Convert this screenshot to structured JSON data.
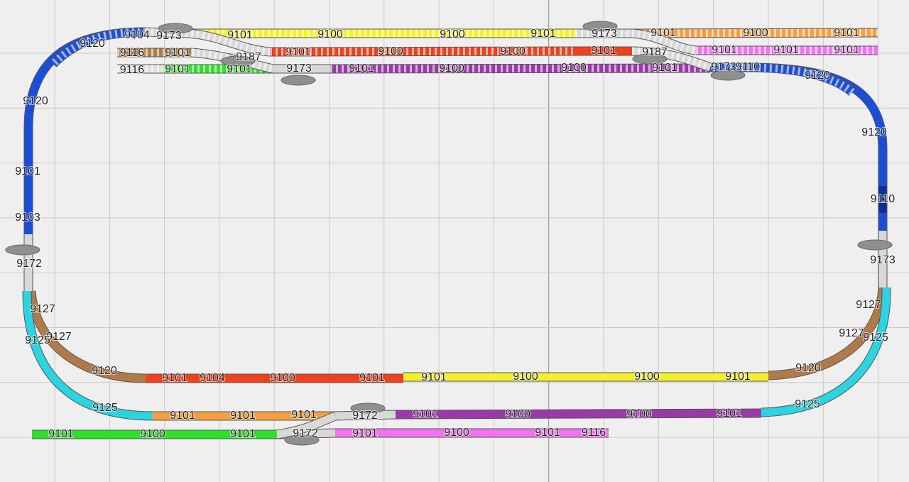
{
  "labels": [
    "9120",
    "9104",
    "9173",
    "9101",
    "9100",
    "9100",
    "9101",
    "9173",
    "9101",
    "9100",
    "9101",
    "9116",
    "9101",
    "9187",
    "9101",
    "9100",
    "9100",
    "9101",
    "9187",
    "9101",
    "9101",
    "9101",
    "9116",
    "9101",
    "9101",
    "9173",
    "9101",
    "9100",
    "9100",
    "9101",
    "9173",
    "9110",
    "9120",
    "9120",
    "9110",
    "9173",
    "9127",
    "9127",
    "9125",
    "9120",
    "9125",
    "9120",
    "9101",
    "9103",
    "9172",
    "9127",
    "9127",
    "9125",
    "9120",
    "9125",
    "9101",
    "9104",
    "9100",
    "9101",
    "9101",
    "9100",
    "9100",
    "9101",
    "9101",
    "9101",
    "9101",
    "9172",
    "9101",
    "9100",
    "9100",
    "9101",
    "9101",
    "9100",
    "9101",
    "9172",
    "9101",
    "9100",
    "9101",
    "9116"
  ]
}
